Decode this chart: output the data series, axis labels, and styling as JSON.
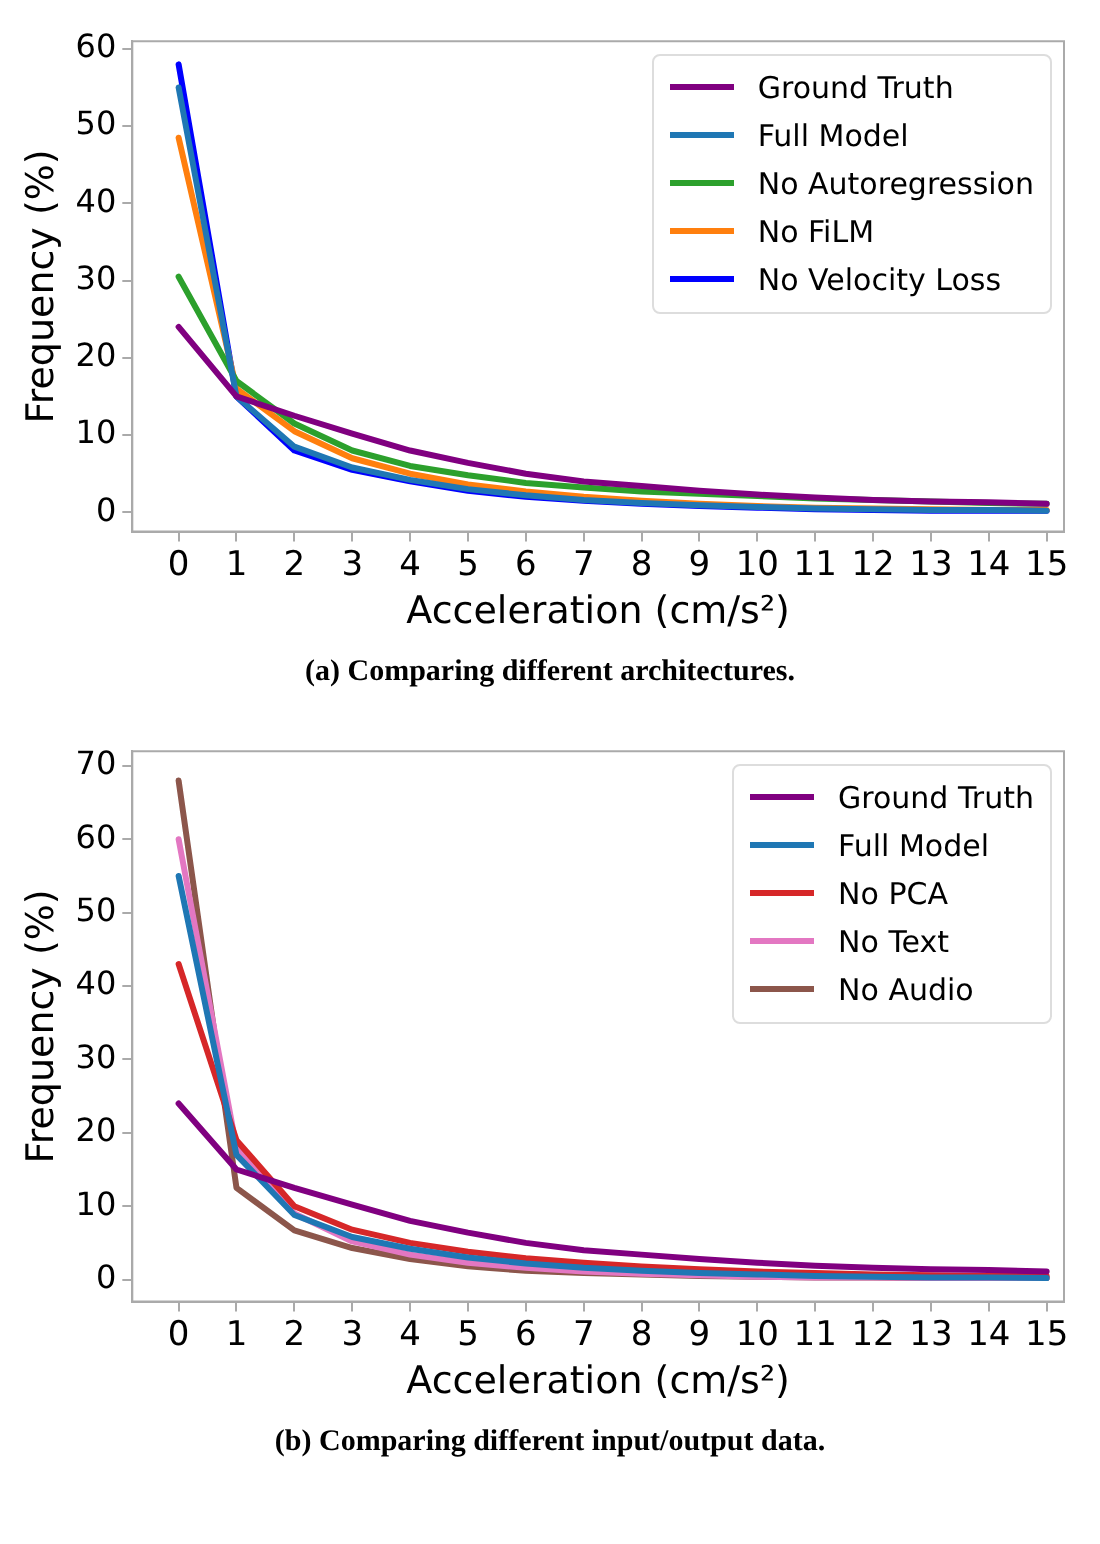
{
  "chart_data": [
    {
      "type": "line",
      "xlabel": "Acceleration (cm/s²)",
      "ylabel": "Frequency (%)",
      "x": [
        0,
        1,
        2,
        3,
        4,
        5,
        6,
        7,
        8,
        9,
        10,
        11,
        12,
        13,
        14,
        15
      ],
      "xlim": [
        -0.8,
        15.3
      ],
      "xticks": [
        0,
        1,
        2,
        3,
        4,
        5,
        6,
        7,
        8,
        9,
        10,
        11,
        12,
        13,
        14,
        15
      ],
      "ylim": [
        -2.5,
        61
      ],
      "yticks": [
        0,
        10,
        20,
        30,
        40,
        50,
        60
      ],
      "grid": false,
      "legend": "top right",
      "annotations": [
        "(a) Comparing different architectures."
      ],
      "series": [
        {
          "name": "Ground Truth",
          "color": "#800080",
          "values": [
            24,
            15,
            12.5,
            10.2,
            8,
            6.4,
            5,
            4,
            3.4,
            2.8,
            2.3,
            1.9,
            1.6,
            1.4,
            1.3,
            1.1
          ]
        },
        {
          "name": "Full Model",
          "color": "#1f77b4",
          "values": [
            55,
            15,
            8.5,
            5.8,
            4.2,
            3,
            2.2,
            1.6,
            1.2,
            0.9,
            0.7,
            0.5,
            0.4,
            0.3,
            0.3,
            0.2
          ]
        },
        {
          "name": "No Autoregression",
          "color": "#2ca02c",
          "values": [
            30.5,
            17,
            11.5,
            8,
            6,
            4.8,
            3.8,
            3.2,
            2.7,
            2.4,
            2.1,
            1.8,
            1.6,
            1.4,
            1.2,
            1.1
          ]
        },
        {
          "name": "No FiLM",
          "color": "#ff7f0e",
          "values": [
            48.5,
            16,
            10.5,
            7,
            5,
            3.6,
            2.7,
            2,
            1.5,
            1.1,
            0.8,
            0.6,
            0.5,
            0.4,
            0.3,
            0.3
          ]
        },
        {
          "name": "No Velocity Loss",
          "color": "#0000ff",
          "values": [
            58,
            15,
            8,
            5.5,
            4,
            2.8,
            2,
            1.5,
            1.1,
            0.8,
            0.6,
            0.4,
            0.3,
            0.2,
            0.2,
            0.2
          ]
        }
      ]
    },
    {
      "type": "line",
      "xlabel": "Acceleration (cm/s²)",
      "ylabel": "Frequency (%)",
      "x": [
        0,
        1,
        2,
        3,
        4,
        5,
        6,
        7,
        8,
        9,
        10,
        11,
        12,
        13,
        14,
        15
      ],
      "xlim": [
        -0.8,
        15.3
      ],
      "xticks": [
        0,
        1,
        2,
        3,
        4,
        5,
        6,
        7,
        8,
        9,
        10,
        11,
        12,
        13,
        14,
        15
      ],
      "ylim": [
        -3,
        72
      ],
      "yticks": [
        0,
        10,
        20,
        30,
        40,
        50,
        60,
        70
      ],
      "grid": false,
      "legend": "top right",
      "annotations": [
        "(b) Comparing different input/output data."
      ],
      "series": [
        {
          "name": "Ground Truth",
          "color": "#800080",
          "values": [
            24,
            15,
            12.5,
            10.2,
            8,
            6.4,
            5,
            4,
            3.4,
            2.8,
            2.3,
            1.9,
            1.6,
            1.4,
            1.3,
            1.1
          ]
        },
        {
          "name": "Full Model",
          "color": "#1f77b4",
          "values": [
            55,
            17,
            8.8,
            5.8,
            4.2,
            3,
            2.2,
            1.6,
            1.2,
            0.9,
            0.7,
            0.5,
            0.4,
            0.3,
            0.3,
            0.2
          ]
        },
        {
          "name": "No PCA",
          "color": "#d62728",
          "values": [
            43,
            19,
            10,
            6.8,
            5,
            3.8,
            2.9,
            2.3,
            1.8,
            1.4,
            1.1,
            0.9,
            0.7,
            0.6,
            0.5,
            0.5
          ]
        },
        {
          "name": "No Text",
          "color": "#e377c2",
          "values": [
            60,
            18,
            9,
            5.2,
            3.4,
            2.3,
            1.6,
            1.1,
            0.8,
            0.6,
            0.4,
            0.3,
            0.3,
            0.2,
            0.2,
            0.2
          ]
        },
        {
          "name": "No Audio",
          "color": "#8c564b",
          "values": [
            68,
            12.5,
            6.7,
            4.3,
            2.8,
            1.8,
            1.2,
            0.9,
            0.7,
            0.5,
            0.4,
            0.3,
            0.3,
            0.2,
            0.2,
            0.2
          ]
        }
      ]
    }
  ]
}
